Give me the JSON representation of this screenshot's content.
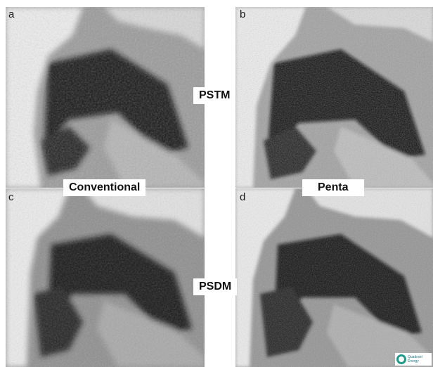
{
  "panels": [
    {
      "id": "a",
      "letter": "a"
    },
    {
      "id": "b",
      "letter": "b"
    },
    {
      "id": "c",
      "letter": "c"
    },
    {
      "id": "d",
      "letter": "d"
    }
  ],
  "labels": {
    "pstm": "PSTM",
    "psdm": "PSDM",
    "conventional": "Conventional",
    "penta": "Penta"
  },
  "logo": {
    "text_line1": "Quadrant",
    "text_line2": "Energy",
    "color": "#1e9a8a"
  },
  "colors": {
    "bright": "#f2f2f2",
    "dark": "#0a0a0a",
    "mid": "#8a8a8a"
  }
}
